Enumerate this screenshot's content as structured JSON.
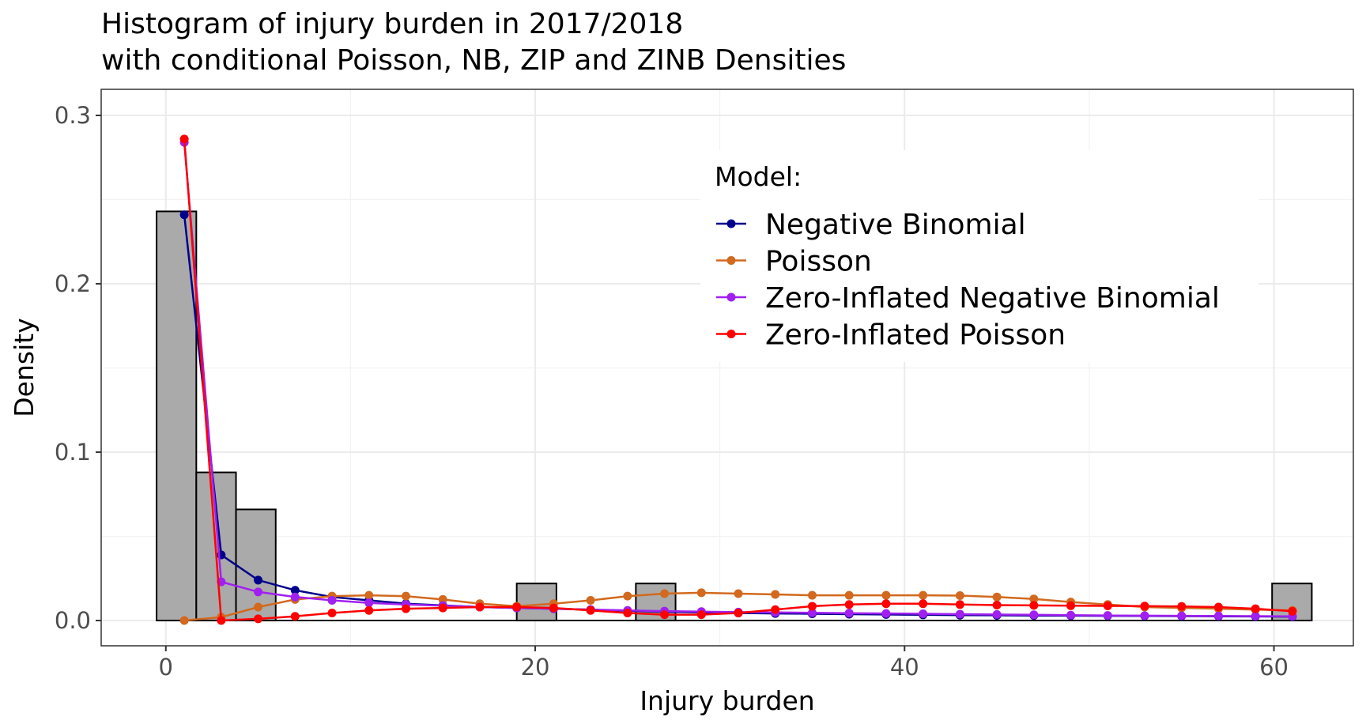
{
  "chart_data": {
    "type": "bar",
    "title": "Histogram of injury burden in 2017/2018",
    "subtitle": "with conditional Poisson, NB, ZIP and ZINB Densities",
    "xlabel": "Injury burden",
    "ylabel": "Density",
    "xlim": [
      -3.5,
      64.3
    ],
    "ylim": [
      -0.015,
      0.3155
    ],
    "x_ticks": [
      0,
      20,
      40,
      60
    ],
    "x_tick_labels": [
      "0",
      "20",
      "40",
      "60"
    ],
    "y_ticks": [
      0.0,
      0.1,
      0.2,
      0.3
    ],
    "y_tick_labels": [
      "0.0",
      "0.1",
      "0.2",
      "0.3"
    ],
    "grid": true,
    "histogram": {
      "bins": [
        {
          "x0": -0.5,
          "x1": 1.65,
          "density": 0.243
        },
        {
          "x0": 1.65,
          "x1": 3.8,
          "density": 0.088
        },
        {
          "x0": 3.8,
          "x1": 5.95,
          "density": 0.066
        },
        {
          "x0": 19.0,
          "x1": 21.15,
          "density": 0.022
        },
        {
          "x0": 25.45,
          "x1": 27.6,
          "density": 0.022
        },
        {
          "x0": 59.9,
          "x1": 62.05,
          "density": 0.022
        }
      ],
      "baseline": [
        -0.5,
        62.05
      ],
      "fill": "#aaaaaa",
      "stroke": "#000000"
    },
    "legend": {
      "title": "Model:",
      "position": "top-right-inside"
    },
    "series": [
      {
        "name": "Negative Binomial",
        "color": "#00008b",
        "x": [
          1,
          3,
          5,
          7,
          9,
          11,
          13,
          15,
          17,
          19,
          21,
          23,
          25,
          27,
          29,
          31,
          33,
          35,
          37,
          39,
          41,
          43,
          45,
          47,
          49,
          51,
          53,
          55,
          57,
          59,
          61
        ],
        "values": [
          0.241,
          0.039,
          0.024,
          0.018,
          0.014,
          0.012,
          0.01,
          0.009,
          0.008,
          0.0075,
          0.007,
          0.0065,
          0.0058,
          0.0052,
          0.0048,
          0.0045,
          0.0042,
          0.004,
          0.0038,
          0.0036,
          0.0034,
          0.0032,
          0.0031,
          0.003,
          0.0029,
          0.0028,
          0.0027,
          0.0026,
          0.0025,
          0.0024,
          0.0023
        ]
      },
      {
        "name": "Poisson",
        "color": "#d2691e",
        "x": [
          1,
          3,
          5,
          7,
          9,
          11,
          13,
          15,
          17,
          19,
          21,
          23,
          25,
          27,
          29,
          31,
          33,
          35,
          37,
          39,
          41,
          43,
          45,
          47,
          49,
          51,
          53,
          55,
          57,
          59,
          61
        ],
        "values": [
          0.0,
          0.002,
          0.008,
          0.0125,
          0.0145,
          0.015,
          0.0145,
          0.0125,
          0.01,
          0.0085,
          0.01,
          0.012,
          0.0145,
          0.016,
          0.0165,
          0.016,
          0.0155,
          0.015,
          0.015,
          0.015,
          0.015,
          0.0148,
          0.014,
          0.0128,
          0.011,
          0.0095,
          0.008,
          0.0075,
          0.007,
          0.0065,
          0.006
        ]
      },
      {
        "name": "Zero-Inflated Negative Binomial",
        "color": "#a020f0",
        "x": [
          1,
          3,
          5,
          7,
          9,
          11,
          13,
          15,
          17,
          19,
          21,
          23,
          25,
          27,
          29,
          31,
          33,
          35,
          37,
          39,
          41,
          43,
          45,
          47,
          49,
          51,
          53,
          55,
          57,
          59,
          61
        ],
        "values": [
          0.284,
          0.023,
          0.017,
          0.014,
          0.012,
          0.0105,
          0.0095,
          0.0088,
          0.008,
          0.0075,
          0.007,
          0.0065,
          0.006,
          0.0056,
          0.0053,
          0.005,
          0.0048,
          0.0046,
          0.0044,
          0.0042,
          0.004,
          0.0038,
          0.0036,
          0.0034,
          0.0032,
          0.003,
          0.0029,
          0.0028,
          0.0027,
          0.0026,
          0.0025
        ]
      },
      {
        "name": "Zero-Inflated Poisson",
        "color": "#ff0000",
        "x": [
          1,
          3,
          5,
          7,
          9,
          11,
          13,
          15,
          17,
          19,
          21,
          23,
          25,
          27,
          29,
          31,
          33,
          35,
          37,
          39,
          41,
          43,
          45,
          47,
          49,
          51,
          53,
          55,
          57,
          59,
          61
        ],
        "values": [
          0.286,
          0.0,
          0.001,
          0.0025,
          0.0045,
          0.006,
          0.007,
          0.0075,
          0.008,
          0.008,
          0.0075,
          0.006,
          0.0045,
          0.0035,
          0.0035,
          0.0045,
          0.0065,
          0.0085,
          0.0095,
          0.01,
          0.01,
          0.0095,
          0.0092,
          0.009,
          0.0088,
          0.0087,
          0.0086,
          0.0084,
          0.008,
          0.007,
          0.0055
        ]
      }
    ]
  }
}
